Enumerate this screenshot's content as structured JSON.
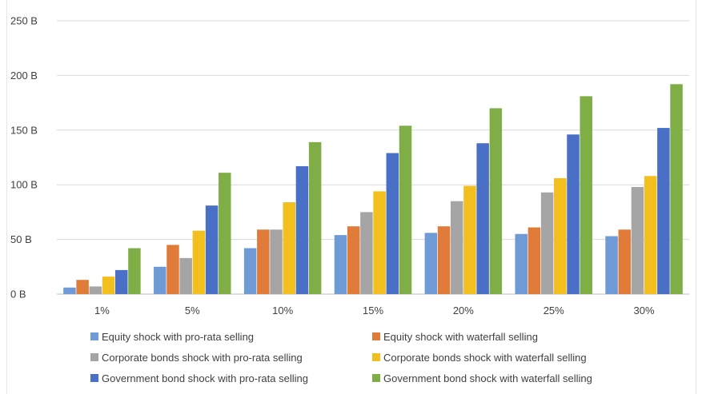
{
  "chart_data": {
    "type": "bar",
    "title": "",
    "xlabel": "",
    "ylabel": "",
    "categories": [
      "1%",
      "5%",
      "10%",
      "15%",
      "20%",
      "25%",
      "30%"
    ],
    "y_ticks": [
      "0 B",
      "50 B",
      "100 B",
      "150 B",
      "200 B",
      "250 B"
    ],
    "y_tick_values": [
      0,
      50,
      100,
      150,
      200,
      250
    ],
    "ylim": [
      0,
      250
    ],
    "grid": true,
    "legend_position": "bottom",
    "series": [
      {
        "name": "Equity shock with pro-rata selling",
        "color": "#6e9ad6",
        "values": [
          6,
          25,
          42,
          54,
          56,
          55,
          53
        ]
      },
      {
        "name": "Equity shock with waterfall selling",
        "color": "#e07b39",
        "values": [
          13,
          45,
          59,
          62,
          62,
          61,
          59
        ]
      },
      {
        "name": "Corporate bonds shock with pro-rata selling",
        "color": "#a5a5a5",
        "values": [
          7,
          33,
          59,
          75,
          85,
          93,
          98
        ]
      },
      {
        "name": "Corporate bonds shock with waterfall selling",
        "color": "#f2bf1f",
        "values": [
          16,
          58,
          84,
          94,
          99,
          106,
          108
        ]
      },
      {
        "name": "Government bond shock with pro-rata selling",
        "color": "#4a6fc7",
        "values": [
          22,
          81,
          117,
          129,
          138,
          146,
          152
        ]
      },
      {
        "name": "Government bond shock with waterfall selling",
        "color": "#7fae47",
        "values": [
          42,
          111,
          139,
          154,
          170,
          181,
          192
        ]
      }
    ]
  }
}
